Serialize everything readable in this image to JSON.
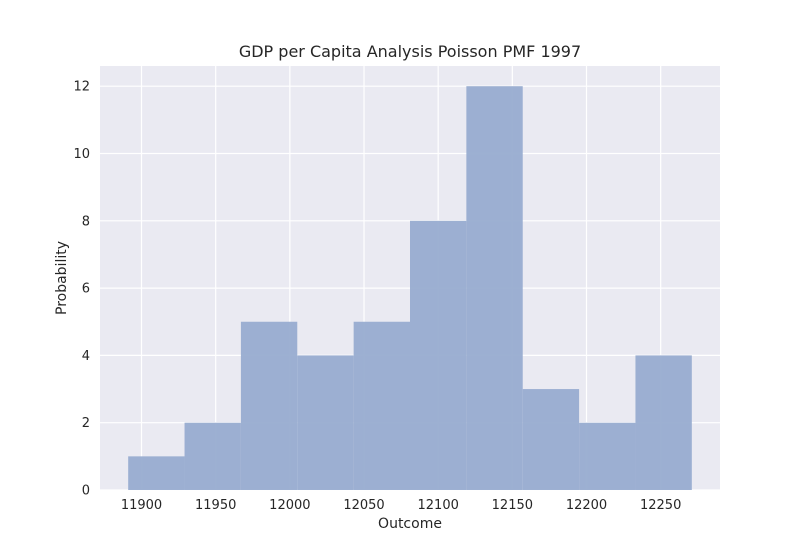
{
  "chart_data": {
    "type": "bar",
    "title": "GDP per Capita Analysis Poisson PMF 1997",
    "xlabel": "Outcome",
    "ylabel": "Probability",
    "bin_edges": [
      11891,
      11929,
      11967,
      12005,
      12043,
      12081,
      12119,
      12157,
      12195,
      12233,
      12271
    ],
    "values": [
      1,
      2,
      5,
      4,
      5,
      8,
      12,
      3,
      2,
      4
    ],
    "xlim": [
      11872,
      12290
    ],
    "ylim": [
      0,
      12.6
    ],
    "x_ticks": [
      11900,
      11950,
      12000,
      12050,
      12100,
      12150,
      12200,
      12250
    ],
    "y_ticks": [
      0,
      2,
      4,
      6,
      8,
      10,
      12
    ],
    "grid": true,
    "legend": "none",
    "colors": {
      "bar": "#98acd0",
      "background": "#eaeaf2",
      "grid": "#ffffff",
      "text": "#262626"
    }
  }
}
